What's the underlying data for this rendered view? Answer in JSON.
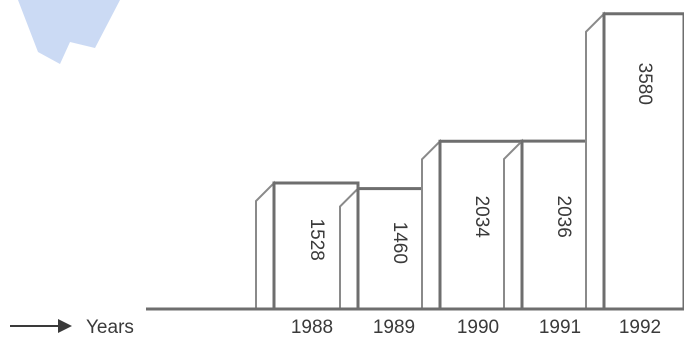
{
  "chart_data": {
    "type": "bar",
    "categories": [
      "1988",
      "1989",
      "1990",
      "1991",
      "1992"
    ],
    "values": [
      1528,
      1460,
      2034,
      2036,
      3580
    ],
    "xlabel": "Years",
    "ylabel": "",
    "ylim": [
      0,
      3650
    ],
    "grid": false,
    "legend": "none",
    "colors": {
      "bar_stroke": "#6e6e6e",
      "text": "#3a3a3a",
      "watermark": "#b9cdf0"
    }
  }
}
